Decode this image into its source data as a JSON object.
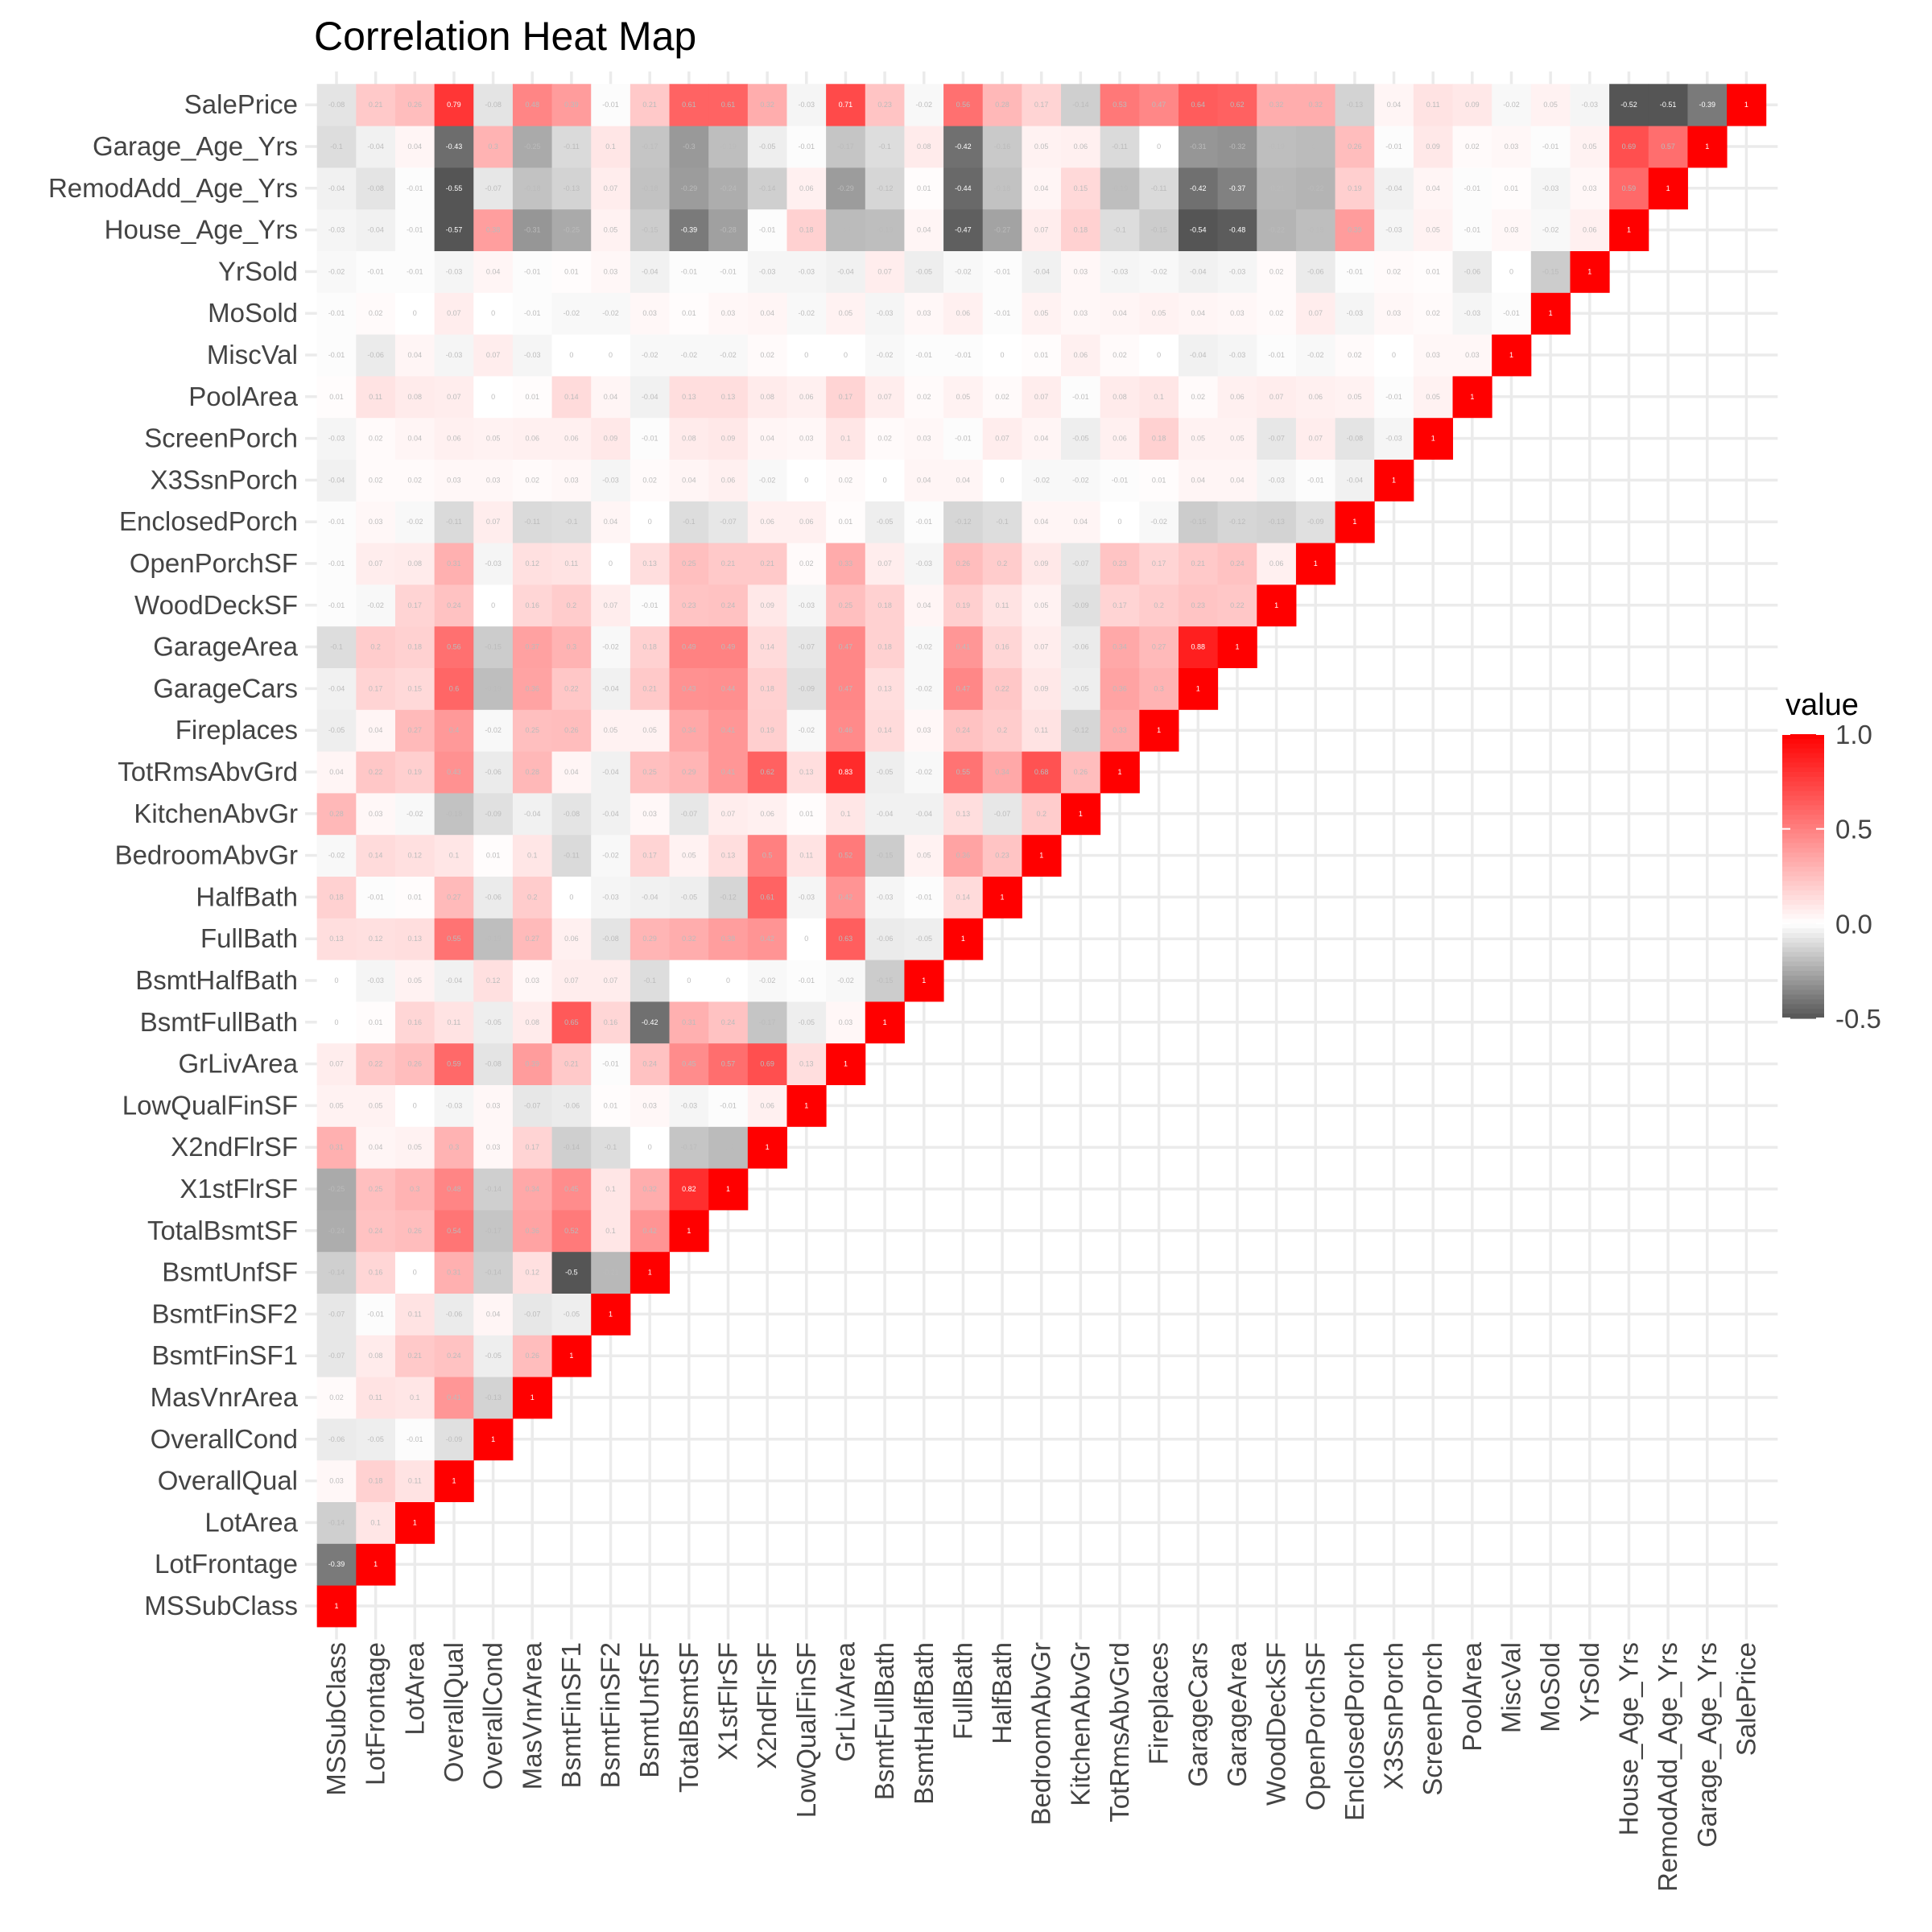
{
  "chart_data": {
    "type": "heatmap",
    "title": "Correlation Heat Map",
    "variables": [
      "MSSubClass",
      "LotFrontage",
      "LotArea",
      "OverallQual",
      "OverallCond",
      "MasVnrArea",
      "BsmtFinSF1",
      "BsmtFinSF2",
      "BsmtUnfSF",
      "TotalBsmtSF",
      "X1stFlrSF",
      "X2ndFlrSF",
      "LowQualFinSF",
      "GrLivArea",
      "BsmtFullBath",
      "BsmtHalfBath",
      "FullBath",
      "HalfBath",
      "BedroomAbvGr",
      "KitchenAbvGr",
      "TotRmsAbvGrd",
      "Fireplaces",
      "GarageCars",
      "GarageArea",
      "WoodDeckSF",
      "OpenPorchSF",
      "EnclosedPorch",
      "X3SsnPorch",
      "ScreenPorch",
      "PoolArea",
      "MiscVal",
      "MoSold",
      "YrSold",
      "House_Age_Yrs",
      "RemodAdd_Age_Yrs",
      "Garage_Age_Yrs",
      "SalePrice"
    ],
    "matrix_lower": [
      [
        1
      ],
      [
        -0.39,
        1
      ],
      [
        -0.14,
        0.1,
        1
      ],
      [
        0.03,
        0.18,
        0.11,
        1
      ],
      [
        -0.06,
        -0.05,
        -0.01,
        -0.09,
        1
      ],
      [
        0.02,
        0.11,
        0.1,
        0.41,
        -0.13,
        1
      ],
      [
        -0.07,
        0.08,
        0.21,
        0.24,
        -0.05,
        0.26,
        1
      ],
      [
        -0.07,
        -0.01,
        0.11,
        -0.06,
        0.04,
        -0.07,
        -0.05,
        1
      ],
      [
        -0.14,
        0.16,
        0,
        0.31,
        -0.14,
        0.12,
        -0.5,
        -0.21,
        1
      ],
      [
        -0.24,
        0.24,
        0.26,
        0.54,
        -0.17,
        0.36,
        0.52,
        0.1,
        0.42,
        1
      ],
      [
        -0.25,
        0.25,
        0.3,
        0.48,
        -0.14,
        0.34,
        0.45,
        0.1,
        0.32,
        0.82,
        1
      ],
      [
        0.31,
        0.04,
        0.05,
        0.3,
        0.03,
        0.17,
        -0.14,
        -0.1,
        0,
        -0.17,
        -0.2,
        1
      ],
      [
        0.05,
        0.05,
        0,
        -0.03,
        0.03,
        -0.07,
        -0.06,
        0.01,
        0.03,
        -0.03,
        -0.01,
        0.06,
        1
      ],
      [
        0.07,
        0.22,
        0.26,
        0.59,
        -0.08,
        0.39,
        0.21,
        -0.01,
        0.24,
        0.45,
        0.57,
        0.69,
        0.13,
        1
      ],
      [
        0,
        0.01,
        0.16,
        0.11,
        -0.05,
        0.08,
        0.65,
        0.16,
        -0.42,
        0.31,
        0.24,
        -0.17,
        -0.05,
        0.03,
        1
      ],
      [
        0,
        -0.03,
        0.05,
        -0.04,
        0.12,
        0.03,
        0.07,
        0.07,
        -0.1,
        0,
        0,
        -0.02,
        -0.01,
        -0.02,
        -0.15,
        1
      ],
      [
        0.13,
        0.12,
        0.13,
        0.55,
        -0.19,
        0.27,
        0.06,
        -0.08,
        0.29,
        0.32,
        0.38,
        0.42,
        0,
        0.63,
        -0.06,
        -0.05,
        1
      ],
      [
        0.18,
        -0.01,
        0.01,
        0.27,
        -0.06,
        0.2,
        0,
        -0.03,
        -0.04,
        -0.05,
        -0.12,
        0.61,
        -0.03,
        0.42,
        -0.03,
        -0.01,
        0.14,
        1
      ],
      [
        -0.02,
        0.14,
        0.12,
        0.1,
        0.01,
        0.1,
        -0.11,
        -0.02,
        0.17,
        0.05,
        0.13,
        0.5,
        0.11,
        0.52,
        -0.15,
        0.05,
        0.36,
        0.23,
        1
      ],
      [
        0.28,
        0.03,
        -0.02,
        -0.18,
        -0.09,
        -0.04,
        -0.08,
        -0.04,
        0.03,
        -0.07,
        0.07,
        0.06,
        0.01,
        0.1,
        -0.04,
        -0.04,
        0.13,
        -0.07,
        0.2,
        1
      ],
      [
        0.04,
        0.22,
        0.19,
        0.43,
        -0.06,
        0.28,
        0.04,
        -0.04,
        0.25,
        0.29,
        0.41,
        0.62,
        0.13,
        0.83,
        -0.05,
        -0.02,
        0.55,
        0.34,
        0.68,
        0.26,
        1
      ],
      [
        -0.05,
        0.04,
        0.27,
        0.4,
        -0.02,
        0.25,
        0.26,
        0.05,
        0.05,
        0.34,
        0.41,
        0.19,
        -0.02,
        0.46,
        0.14,
        0.03,
        0.24,
        0.2,
        0.11,
        -0.12,
        0.33,
        1
      ],
      [
        -0.04,
        0.17,
        0.15,
        0.6,
        -0.19,
        0.36,
        0.22,
        -0.04,
        0.21,
        0.43,
        0.44,
        0.18,
        -0.09,
        0.47,
        0.13,
        -0.02,
        0.47,
        0.22,
        0.09,
        -0.05,
        0.36,
        0.3,
        1
      ],
      [
        -0.1,
        0.2,
        0.18,
        0.56,
        -0.15,
        0.37,
        0.3,
        -0.02,
        0.18,
        0.49,
        0.49,
        0.14,
        -0.07,
        0.47,
        0.18,
        -0.02,
        0.41,
        0.16,
        0.07,
        -0.06,
        0.34,
        0.27,
        0.88,
        1
      ],
      [
        -0.01,
        -0.02,
        0.17,
        0.24,
        0,
        0.16,
        0.2,
        0.07,
        -0.01,
        0.23,
        0.24,
        0.09,
        -0.03,
        0.25,
        0.18,
        0.04,
        0.19,
        0.11,
        0.05,
        -0.09,
        0.17,
        0.2,
        0.23,
        0.22,
        1
      ],
      [
        -0.01,
        0.07,
        0.08,
        0.31,
        -0.03,
        0.12,
        0.11,
        0,
        0.13,
        0.25,
        0.21,
        0.21,
        0.02,
        0.33,
        0.07,
        -0.03,
        0.26,
        0.2,
        0.09,
        -0.07,
        0.23,
        0.17,
        0.21,
        0.24,
        0.06,
        1
      ],
      [
        -0.01,
        0.03,
        -0.02,
        -0.11,
        0.07,
        -0.11,
        -0.1,
        0.04,
        0,
        -0.1,
        -0.07,
        0.06,
        0.06,
        0.01,
        -0.05,
        -0.01,
        -0.12,
        -0.1,
        0.04,
        0.04,
        0,
        -0.02,
        -0.15,
        -0.12,
        -0.13,
        -0.09,
        1
      ],
      [
        -0.04,
        0.02,
        0.02,
        0.03,
        0.03,
        0.02,
        0.03,
        -0.03,
        0.02,
        0.04,
        0.06,
        -0.02,
        0,
        0.02,
        0,
        0.04,
        0.04,
        0,
        -0.02,
        -0.02,
        -0.01,
        0.01,
        0.04,
        0.04,
        -0.03,
        -0.01,
        -0.04,
        1
      ],
      [
        -0.03,
        0.02,
        0.04,
        0.06,
        0.05,
        0.06,
        0.06,
        0.09,
        -0.01,
        0.08,
        0.09,
        0.04,
        0.03,
        0.1,
        0.02,
        0.03,
        -0.01,
        0.07,
        0.04,
        -0.05,
        0.06,
        0.18,
        0.05,
        0.05,
        -0.07,
        0.07,
        -0.08,
        -0.03,
        1
      ],
      [
        0.01,
        0.11,
        0.08,
        0.07,
        0,
        0.01,
        0.14,
        0.04,
        -0.04,
        0.13,
        0.13,
        0.08,
        0.06,
        0.17,
        0.07,
        0.02,
        0.05,
        0.02,
        0.07,
        -0.01,
        0.08,
        0.1,
        0.02,
        0.06,
        0.07,
        0.06,
        0.05,
        -0.01,
        0.05,
        1
      ],
      [
        -0.01,
        -0.06,
        0.04,
        -0.03,
        0.07,
        -0.03,
        0,
        0,
        -0.02,
        -0.02,
        -0.02,
        0.02,
        0,
        0,
        -0.02,
        -0.01,
        -0.01,
        0,
        0.01,
        0.06,
        0.02,
        0,
        -0.04,
        -0.03,
        -0.01,
        -0.02,
        0.02,
        0,
        0.03,
        0.03,
        1
      ],
      [
        -0.01,
        0.02,
        0,
        0.07,
        0,
        -0.01,
        -0.02,
        -0.02,
        0.03,
        0.01,
        0.03,
        0.04,
        -0.02,
        0.05,
        -0.03,
        0.03,
        0.06,
        -0.01,
        0.05,
        0.03,
        0.04,
        0.05,
        0.04,
        0.03,
        0.02,
        0.07,
        -0.03,
        0.03,
        0.02,
        -0.03,
        -0.01,
        1
      ],
      [
        -0.02,
        -0.01,
        -0.01,
        -0.03,
        0.04,
        -0.01,
        0.01,
        0.03,
        -0.04,
        -0.01,
        -0.01,
        -0.03,
        -0.03,
        -0.04,
        0.07,
        -0.05,
        -0.02,
        -0.01,
        -0.04,
        0.03,
        -0.03,
        -0.02,
        -0.04,
        -0.03,
        0.02,
        -0.06,
        -0.01,
        0.02,
        0.01,
        -0.06,
        0,
        -0.15,
        1
      ],
      [
        -0.03,
        -0.04,
        -0.01,
        -0.57,
        0.38,
        -0.31,
        -0.25,
        0.05,
        -0.15,
        -0.39,
        -0.28,
        -0.01,
        0.18,
        -0.2,
        -0.19,
        0.04,
        -0.47,
        -0.27,
        0.07,
        0.18,
        -0.1,
        -0.15,
        -0.54,
        -0.48,
        -0.22,
        -0.19,
        0.39,
        -0.03,
        0.05,
        -0.01,
        0.03,
        -0.02,
        0.06,
        1
      ],
      [
        -0.04,
        -0.08,
        -0.01,
        -0.55,
        -0.07,
        -0.18,
        -0.13,
        0.07,
        -0.18,
        -0.29,
        -0.24,
        -0.14,
        0.06,
        -0.29,
        -0.12,
        0.01,
        -0.44,
        -0.18,
        0.04,
        0.15,
        -0.19,
        -0.11,
        -0.42,
        -0.37,
        -0.21,
        -0.22,
        0.19,
        -0.04,
        0.04,
        -0.01,
        0.01,
        -0.03,
        0.03,
        0.59,
        1
      ],
      [
        -0.1,
        -0.04,
        0.04,
        -0.43,
        0.3,
        -0.25,
        -0.11,
        0.1,
        -0.17,
        -0.3,
        -0.19,
        -0.05,
        -0.01,
        -0.17,
        -0.1,
        0.08,
        -0.42,
        -0.16,
        0.05,
        0.06,
        -0.11,
        0,
        -0.31,
        -0.32,
        -0.19,
        -0.2,
        0.26,
        -0.01,
        0.09,
        0.02,
        0.03,
        -0.01,
        0.05,
        0.69,
        0.57,
        1
      ],
      [
        -0.08,
        0.21,
        0.26,
        0.79,
        -0.08,
        0.48,
        0.39,
        -0.01,
        0.21,
        0.61,
        0.61,
        0.32,
        -0.03,
        0.71,
        0.23,
        -0.02,
        0.56,
        0.28,
        0.17,
        -0.14,
        0.53,
        0.47,
        0.64,
        0.62,
        0.32,
        0.32,
        -0.13,
        0.04,
        0.11,
        0.09,
        -0.02,
        0.05,
        -0.03,
        -0.52,
        -0.51,
        -0.39,
        1
      ]
    ],
    "color_scale": {
      "low": "#555555",
      "mid": "#ffffff",
      "high": "#ff0000",
      "low_value": -0.5,
      "mid_value": 0,
      "high_value": 1
    },
    "legend": {
      "title": "value",
      "ticks": [
        "1.0",
        "0.5",
        "0.0",
        "-0.5"
      ],
      "tick_values": [
        1,
        0.5,
        0,
        -0.5
      ],
      "placement": "right"
    },
    "grid": true
  }
}
